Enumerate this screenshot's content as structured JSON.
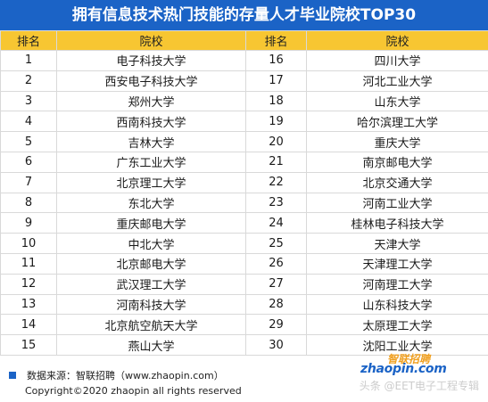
{
  "title": "拥有信息技术热门技能的存量人才毕业院校TOP30",
  "headers": {
    "rank": "排名",
    "school": "院校"
  },
  "left_column": [
    {
      "rank": "1",
      "school": "电子科技大学"
    },
    {
      "rank": "2",
      "school": "西安电子科技大学"
    },
    {
      "rank": "3",
      "school": "郑州大学"
    },
    {
      "rank": "4",
      "school": "西南科技大学"
    },
    {
      "rank": "5",
      "school": "吉林大学"
    },
    {
      "rank": "6",
      "school": "广东工业大学"
    },
    {
      "rank": "7",
      "school": "北京理工大学"
    },
    {
      "rank": "8",
      "school": "东北大学"
    },
    {
      "rank": "9",
      "school": "重庆邮电大学"
    },
    {
      "rank": "10",
      "school": "中北大学"
    },
    {
      "rank": "11",
      "school": "北京邮电大学"
    },
    {
      "rank": "12",
      "school": "武汉理工大学"
    },
    {
      "rank": "13",
      "school": "河南科技大学"
    },
    {
      "rank": "14",
      "school": "北京航空航天大学"
    },
    {
      "rank": "15",
      "school": "燕山大学"
    }
  ],
  "right_column": [
    {
      "rank": "16",
      "school": "四川大学"
    },
    {
      "rank": "17",
      "school": "河北工业大学"
    },
    {
      "rank": "18",
      "school": "山东大学"
    },
    {
      "rank": "19",
      "school": "哈尔滨理工大学"
    },
    {
      "rank": "20",
      "school": "重庆大学"
    },
    {
      "rank": "21",
      "school": "南京邮电大学"
    },
    {
      "rank": "22",
      "school": "北京交通大学"
    },
    {
      "rank": "23",
      "school": "河南工业大学"
    },
    {
      "rank": "24",
      "school": "桂林电子科技大学"
    },
    {
      "rank": "25",
      "school": "天津大学"
    },
    {
      "rank": "26",
      "school": "天津理工大学"
    },
    {
      "rank": "27",
      "school": "河南理工大学"
    },
    {
      "rank": "28",
      "school": "山东科技大学"
    },
    {
      "rank": "29",
      "school": "太原理工大学"
    },
    {
      "rank": "30",
      "school": "沈阳工业大学"
    }
  ],
  "footer": {
    "source": "数据来源：智联招聘（www.zhaopin.com）",
    "copyright": "Copyright©2020 zhaopin all rights reserved"
  },
  "logo": {
    "cn": "智联招聘",
    "en": "zhaopin.com"
  },
  "watermark": "头条 @EET电子工程专辑",
  "colors": {
    "title_bg": "#1b63c6",
    "header_bg": "#f7c632",
    "accent": "#1b63c6"
  }
}
